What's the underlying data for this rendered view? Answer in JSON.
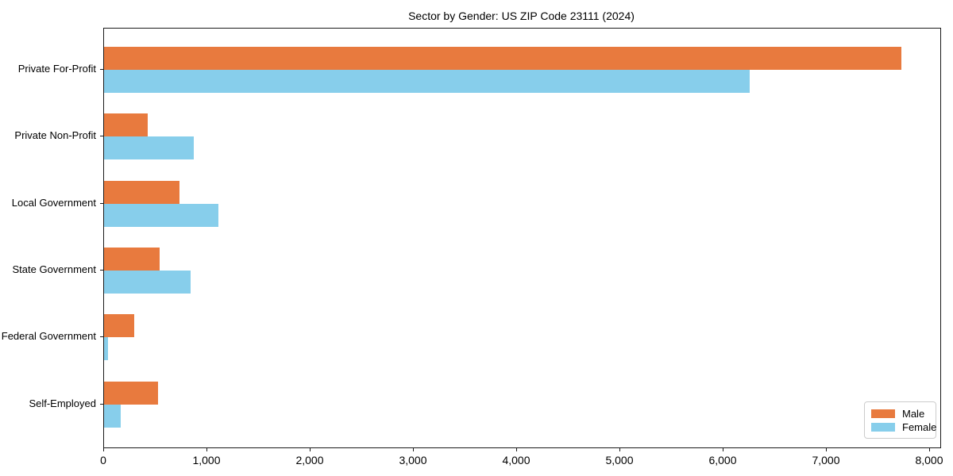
{
  "chart_data": {
    "type": "bar",
    "orientation": "horizontal",
    "title": "Sector by Gender: US ZIP Code 23111 (2024)",
    "xlabel": "",
    "ylabel": "",
    "categories": [
      "Private For-Profit",
      "Private Non-Profit",
      "Local Government",
      "State Government",
      "Federal Government",
      "Self-Employed"
    ],
    "series": [
      {
        "name": "Male",
        "color": "#e87a3e",
        "values": [
          7720,
          420,
          730,
          540,
          290,
          520
        ]
      },
      {
        "name": "Female",
        "color": "#87ceeb",
        "values": [
          6250,
          870,
          1110,
          840,
          40,
          160
        ]
      }
    ],
    "xlim": [
      0,
      8100
    ],
    "xticks": [
      {
        "value": 0,
        "label": "0"
      },
      {
        "value": 1000,
        "label": "1,000"
      },
      {
        "value": 2000,
        "label": "2,000"
      },
      {
        "value": 3000,
        "label": "3,000"
      },
      {
        "value": 4000,
        "label": "4,000"
      },
      {
        "value": 5000,
        "label": "5,000"
      },
      {
        "value": 6000,
        "label": "6,000"
      },
      {
        "value": 7000,
        "label": "7,000"
      },
      {
        "value": 8000,
        "label": "8,000"
      }
    ],
    "grid": false,
    "legend": {
      "position": "lower right",
      "labels": [
        "Male",
        "Female"
      ]
    }
  }
}
